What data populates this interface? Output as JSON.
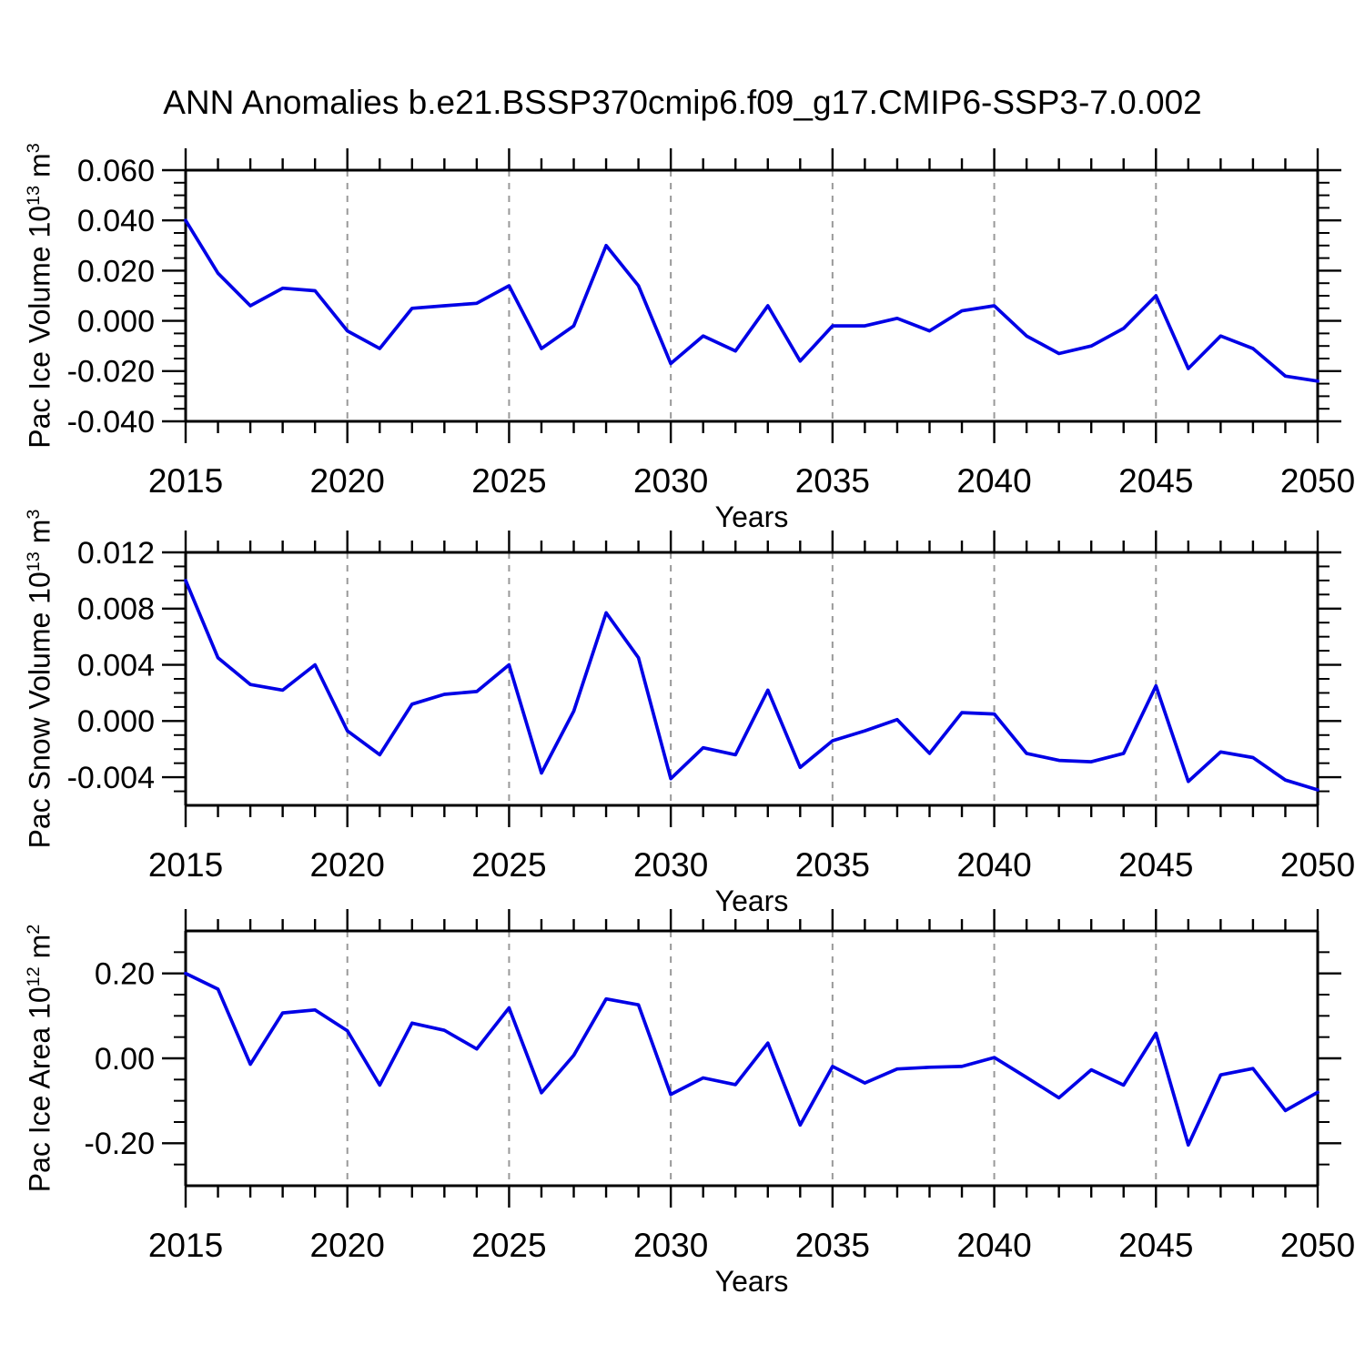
{
  "title": "ANN Anomalies b.e21.BSSP370cmip6.f09_g17.CMIP6-SSP3-7.0.002",
  "line_color": "#0000e6",
  "grid_color": "#999999",
  "axis_color": "#000000",
  "x_axis": {
    "label": "Years",
    "years": [
      2015,
      2016,
      2017,
      2018,
      2019,
      2020,
      2021,
      2022,
      2023,
      2024,
      2025,
      2026,
      2027,
      2028,
      2029,
      2030,
      2031,
      2032,
      2033,
      2034,
      2035,
      2036,
      2037,
      2038,
      2039,
      2040,
      2041,
      2042,
      2043,
      2044,
      2045,
      2046,
      2047,
      2048,
      2049,
      2050
    ],
    "major_tick_years": [
      2015,
      2020,
      2025,
      2030,
      2035,
      2040,
      2045,
      2050
    ],
    "major_tick_labels": [
      "2015",
      "2020",
      "2025",
      "2030",
      "2035",
      "2040",
      "2045",
      "2050"
    ],
    "grid_years": [
      2020,
      2025,
      2030,
      2035,
      2040,
      2045
    ],
    "xlim": [
      2015,
      2050
    ]
  },
  "chart_data": [
    {
      "type": "line",
      "ylabel": "Pac Ice Volume 10^13 m^3",
      "ylabel_parts": {
        "text": "Pac Ice Volume 10",
        "exp": "13",
        "unit": " m",
        "unit_exp": "3"
      },
      "ylim": [
        -0.04,
        0.06
      ],
      "ytick_values": [
        0.06,
        0.04,
        0.02,
        0.0,
        -0.02,
        -0.04
      ],
      "ytick_labels": [
        "0.060",
        "0.040",
        "0.020",
        "0.000",
        "-0.020",
        "-0.040"
      ],
      "minor_step": 0.005,
      "xlabel": "Years",
      "values": [
        0.04,
        0.019,
        0.006,
        0.013,
        0.012,
        -0.004,
        -0.011,
        0.005,
        0.006,
        0.007,
        0.014,
        -0.011,
        -0.002,
        0.03,
        0.014,
        -0.017,
        -0.006,
        -0.012,
        0.006,
        -0.016,
        -0.002,
        -0.002,
        0.001,
        -0.004,
        0.004,
        0.006,
        -0.006,
        -0.013,
        -0.01,
        -0.003,
        0.01,
        -0.019,
        -0.006,
        -0.011,
        -0.022,
        -0.024
      ]
    },
    {
      "type": "line",
      "ylabel": "Pac Snow Volume 10^13 m^3",
      "ylabel_parts": {
        "text": "Pac Snow Volume 10",
        "exp": "13",
        "unit": " m",
        "unit_exp": "3"
      },
      "ylim": [
        -0.006,
        0.012
      ],
      "ytick_values": [
        0.012,
        0.008,
        0.004,
        0.0,
        -0.004
      ],
      "ytick_labels": [
        "0.012",
        "0.008",
        "0.004",
        "0.000",
        "-0.004"
      ],
      "minor_step": 0.001,
      "xlabel": "Years",
      "values": [
        0.01,
        0.0045,
        0.0026,
        0.0022,
        0.004,
        -0.0007,
        -0.0024,
        0.0012,
        0.0019,
        0.0021,
        0.004,
        -0.0037,
        0.0007,
        0.0077,
        0.0045,
        -0.0041,
        -0.0019,
        -0.0024,
        0.0022,
        -0.0033,
        -0.0014,
        -0.0007,
        0.0001,
        -0.0023,
        0.0006,
        0.0005,
        -0.0023,
        -0.0028,
        -0.0029,
        -0.0023,
        0.0025,
        -0.0043,
        -0.0022,
        -0.0026,
        -0.0042,
        -0.0049
      ]
    },
    {
      "type": "line",
      "ylabel": "Pac Ice Area 10^12 m^2",
      "ylabel_parts": {
        "text": "Pac Ice Area 10",
        "exp": "12",
        "unit": " m",
        "unit_exp": "2"
      },
      "ylim": [
        -0.3,
        0.3
      ],
      "ytick_values": [
        0.2,
        0.0,
        -0.2
      ],
      "ytick_labels": [
        "0.20",
        "0.00",
        "-0.20"
      ],
      "minor_step": 0.05,
      "xlabel": "Years",
      "values": [
        0.2,
        0.163,
        -0.014,
        0.107,
        0.114,
        0.065,
        -0.063,
        0.083,
        0.066,
        0.022,
        0.119,
        -0.081,
        0.007,
        0.14,
        0.126,
        -0.085,
        -0.046,
        -0.062,
        0.036,
        -0.157,
        -0.019,
        -0.058,
        -0.025,
        -0.021,
        -0.019,
        0.002,
        -0.045,
        -0.093,
        -0.027,
        -0.063,
        0.059,
        -0.204,
        -0.039,
        -0.024,
        -0.123,
        -0.08
      ]
    }
  ]
}
